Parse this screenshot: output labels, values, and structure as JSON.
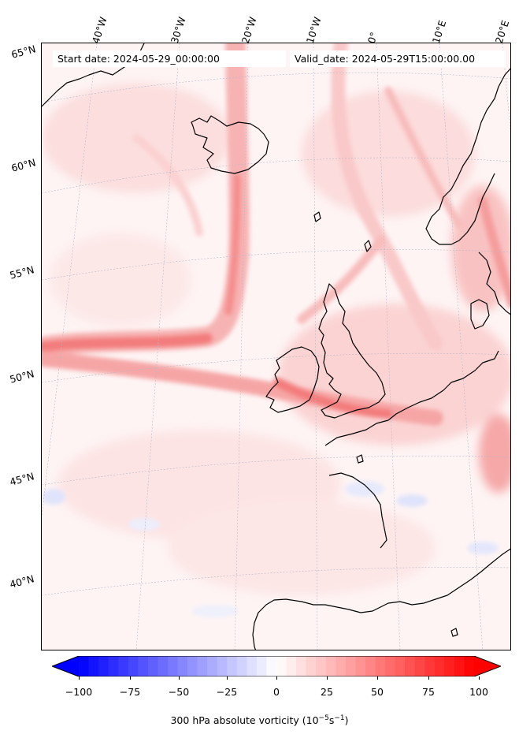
{
  "header": {
    "start_date": "Start date: 2024-05-29_00:00:00",
    "valid_date": "Valid_date: 2024-05-29T15:00:00.00"
  },
  "lon_labels": [
    "40°W",
    "30°W",
    "20°W",
    "10°W",
    "0°",
    "10°E",
    "20°E"
  ],
  "lat_labels": [
    "65°N",
    "60°N",
    "55°N",
    "50°N",
    "45°N",
    "40°N"
  ],
  "colorbar": {
    "ticks": [
      "−100",
      "−75",
      "−50",
      "−25",
      "0",
      "25",
      "50",
      "75",
      "100"
    ],
    "label_main": "300 hPa absolute vorticity (10",
    "label_exp1": "−5",
    "label_mid": "s",
    "label_exp2": "−1",
    "label_end": ")",
    "min": -100,
    "max": 100,
    "extend": "both",
    "colormap": "bwr",
    "low_color": "#0000ff",
    "mid_color": "#ffffff",
    "high_color": "#ff0000"
  },
  "map": {
    "projection": "lambert-conformal",
    "domain": "North Atlantic / Western Europe",
    "field": "300 hPa absolute vorticity",
    "coastline_color": "#000000",
    "gridline_style": "dotted-grey"
  }
}
